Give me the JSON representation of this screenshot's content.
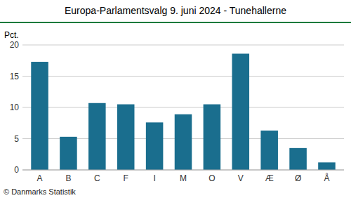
{
  "chart_data": {
    "type": "bar",
    "title": "Europa-Parlamentsvalg 9. juni 2024 - Tunehallerne",
    "ylabel": "Pct.",
    "footer": "© Danmarks Statistik",
    "categories": [
      "A",
      "B",
      "C",
      "F",
      "I",
      "M",
      "O",
      "V",
      "Æ",
      "Ø",
      "Å"
    ],
    "values": [
      17.3,
      5.3,
      10.7,
      10.5,
      7.6,
      8.9,
      10.5,
      18.6,
      6.3,
      3.5,
      1.2
    ],
    "color": "#1a6e8e",
    "ylim": [
      0,
      20
    ],
    "yticks": [
      0,
      5,
      10,
      15,
      20
    ],
    "grid": true
  }
}
